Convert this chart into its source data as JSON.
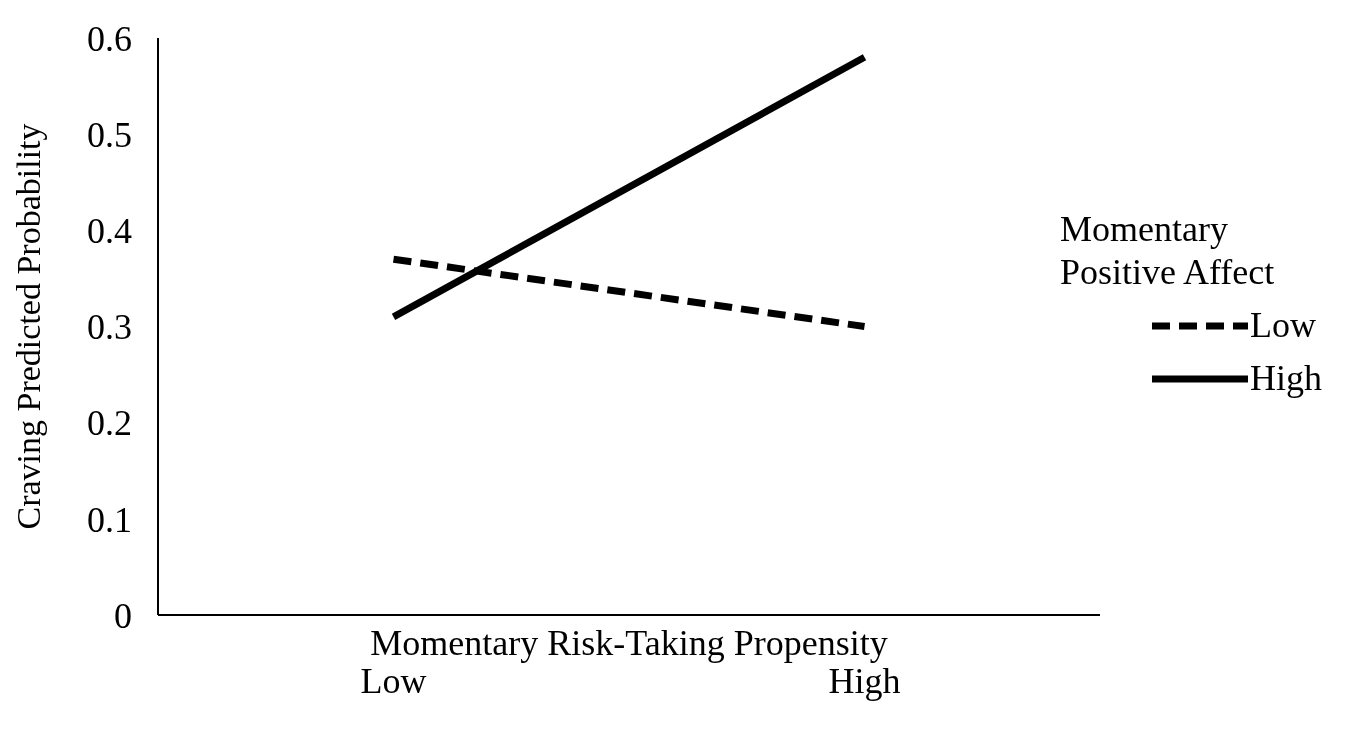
{
  "chart_data": {
    "type": "line",
    "xlabel": "Momentary Risk-Taking Propensity",
    "ylabel": "Craving Predicted Probability",
    "legend_title": "Momentary Positive Affect",
    "categories": [
      "Low",
      "High"
    ],
    "series": [
      {
        "name": "Low",
        "color": "#000000",
        "values": [
          0.37,
          0.3
        ],
        "line_style": "dashed"
      },
      {
        "name": "High",
        "color": "#000000",
        "values": [
          0.31,
          0.58
        ],
        "line_style": "solid"
      }
    ],
    "ylim": [
      0,
      0.6
    ],
    "yticks": [
      0,
      0.1,
      0.2,
      0.3,
      0.4,
      0.5,
      0.6
    ],
    "grid": false,
    "legend": "right",
    "marker": "none"
  }
}
